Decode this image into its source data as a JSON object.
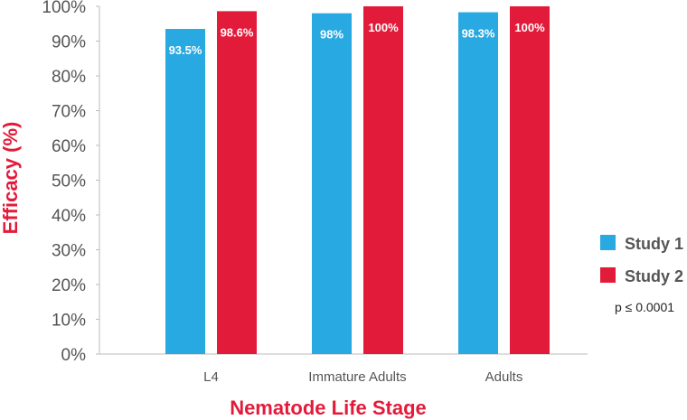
{
  "chart_data": {
    "type": "bar",
    "categories": [
      "L4",
      "Immature Adults",
      "Adults"
    ],
    "series": [
      {
        "name": "Study 1",
        "color": "#29a9e1",
        "values": [
          93.5,
          98,
          98.3
        ],
        "labels": [
          "93.5%",
          "98%",
          "98.3%"
        ]
      },
      {
        "name": "Study 2",
        "color": "#e31b3a",
        "values": [
          98.6,
          100,
          100
        ],
        "labels": [
          "98.6%",
          "100%",
          "100%"
        ]
      }
    ],
    "xlabel": "Nematode Life Stage",
    "ylabel": "Efficacy (%)",
    "label_color": "#e31b3a",
    "ylim": [
      0,
      100
    ],
    "yticks": [
      "0%",
      "10%",
      "20%",
      "30%",
      "40%",
      "50%",
      "60%",
      "70%",
      "80%",
      "90%",
      "100%"
    ],
    "legend_position": "right",
    "annotation": "p ≤ 0.0001",
    "grid": false
  }
}
